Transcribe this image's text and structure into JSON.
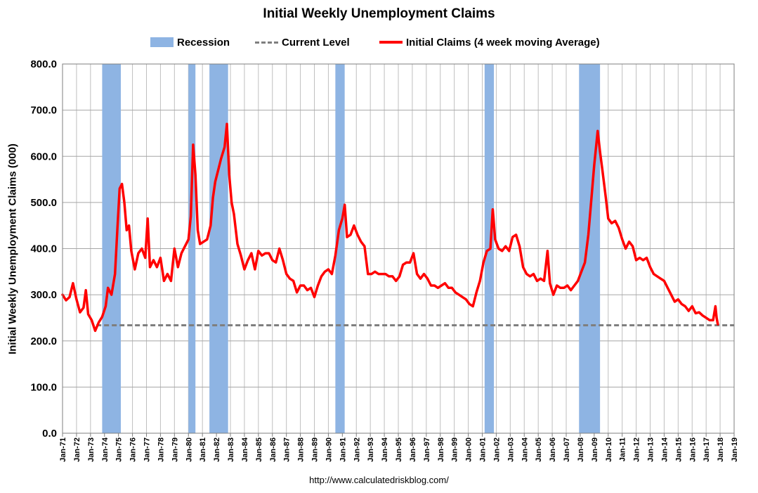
{
  "chart_data": {
    "type": "line",
    "title": "Initial Weekly Unemployment Claims",
    "xlabel": "",
    "ylabel": "Initial Weekly Unemployment Claims (000)",
    "ylim": [
      0,
      800
    ],
    "xlim": [
      "1971-01",
      "2019-01"
    ],
    "grid": true,
    "legend_placement": "top",
    "y_ticks": [
      "0.0",
      "100.0",
      "200.0",
      "300.0",
      "400.0",
      "500.0",
      "600.0",
      "700.0",
      "800.0"
    ],
    "x_ticks": [
      "Jan-71",
      "Jan-72",
      "Jan-73",
      "Jan-74",
      "Jan-75",
      "Jan-76",
      "Jan-77",
      "Jan-78",
      "Jan-79",
      "Jan-80",
      "Jan-81",
      "Jan-82",
      "Jan-83",
      "Jan-84",
      "Jan-85",
      "Jan-86",
      "Jan-87",
      "Jan-88",
      "Jan-89",
      "Jan-90",
      "Jan-91",
      "Jan-92",
      "Jan-93",
      "Jan-94",
      "Jan-95",
      "Jan-96",
      "Jan-97",
      "Jan-98",
      "Jan-99",
      "Jan-00",
      "Jan-01",
      "Jan-02",
      "Jan-03",
      "Jan-04",
      "Jan-05",
      "Jan-06",
      "Jan-07",
      "Jan-08",
      "Jan-09",
      "Jan-10",
      "Jan-11",
      "Jan-12",
      "Jan-13",
      "Jan-14",
      "Jan-15",
      "Jan-16",
      "Jan-17",
      "Jan-18",
      "Jan-19"
    ],
    "legend": {
      "recession": "Recession",
      "current": "Current Level",
      "claims": "Initial Claims (4 week moving Average)"
    },
    "recessions": [
      {
        "start": "1973-11",
        "end": "1975-03"
      },
      {
        "start": "1980-01",
        "end": "1980-07"
      },
      {
        "start": "1981-07",
        "end": "1982-11"
      },
      {
        "start": "1990-07",
        "end": "1991-03"
      },
      {
        "start": "2001-03",
        "end": "2001-11"
      },
      {
        "start": "2007-12",
        "end": "2009-06"
      }
    ],
    "current_level": 234,
    "series": [
      {
        "name": "Initial Claims (4 week moving Average)",
        "color": "#ff0000",
        "points": [
          [
            "1971-01",
            300
          ],
          [
            "1971-04",
            288
          ],
          [
            "1971-07",
            295
          ],
          [
            "1971-10",
            325
          ],
          [
            "1972-01",
            290
          ],
          [
            "1972-04",
            262
          ],
          [
            "1972-07",
            272
          ],
          [
            "1972-09",
            310
          ],
          [
            "1972-11",
            258
          ],
          [
            "1973-02",
            245
          ],
          [
            "1973-05",
            222
          ],
          [
            "1973-08",
            240
          ],
          [
            "1973-11",
            252
          ],
          [
            "1974-02",
            275
          ],
          [
            "1974-04",
            315
          ],
          [
            "1974-07",
            300
          ],
          [
            "1974-10",
            345
          ],
          [
            "1974-12",
            440
          ],
          [
            "1975-02",
            530
          ],
          [
            "1975-04",
            540
          ],
          [
            "1975-06",
            500
          ],
          [
            "1975-08",
            440
          ],
          [
            "1975-10",
            450
          ],
          [
            "1975-12",
            395
          ],
          [
            "1976-03",
            355
          ],
          [
            "1976-06",
            390
          ],
          [
            "1976-09",
            400
          ],
          [
            "1976-12",
            380
          ],
          [
            "1977-02",
            465
          ],
          [
            "1977-04",
            360
          ],
          [
            "1977-07",
            375
          ],
          [
            "1977-10",
            360
          ],
          [
            "1978-01",
            380
          ],
          [
            "1978-04",
            330
          ],
          [
            "1978-07",
            345
          ],
          [
            "1978-10",
            330
          ],
          [
            "1979-01",
            400
          ],
          [
            "1979-04",
            360
          ],
          [
            "1979-07",
            390
          ],
          [
            "1979-10",
            405
          ],
          [
            "1980-01",
            420
          ],
          [
            "1980-03",
            470
          ],
          [
            "1980-05",
            625
          ],
          [
            "1980-07",
            560
          ],
          [
            "1980-09",
            440
          ],
          [
            "1980-11",
            410
          ],
          [
            "1981-02",
            415
          ],
          [
            "1981-05",
            420
          ],
          [
            "1981-08",
            450
          ],
          [
            "1981-10",
            510
          ],
          [
            "1981-12",
            545
          ],
          [
            "1982-03",
            575
          ],
          [
            "1982-05",
            595
          ],
          [
            "1982-08",
            620
          ],
          [
            "1982-10",
            670
          ],
          [
            "1982-12",
            560
          ],
          [
            "1983-02",
            500
          ],
          [
            "1983-04",
            475
          ],
          [
            "1983-07",
            410
          ],
          [
            "1983-10",
            385
          ],
          [
            "1984-01",
            355
          ],
          [
            "1984-04",
            375
          ],
          [
            "1984-07",
            390
          ],
          [
            "1984-10",
            355
          ],
          [
            "1985-01",
            395
          ],
          [
            "1985-04",
            385
          ],
          [
            "1985-07",
            390
          ],
          [
            "1985-10",
            390
          ],
          [
            "1986-01",
            375
          ],
          [
            "1986-04",
            370
          ],
          [
            "1986-07",
            400
          ],
          [
            "1986-10",
            375
          ],
          [
            "1987-01",
            345
          ],
          [
            "1987-04",
            335
          ],
          [
            "1987-07",
            330
          ],
          [
            "1987-10",
            305
          ],
          [
            "1988-01",
            320
          ],
          [
            "1988-04",
            320
          ],
          [
            "1988-07",
            310
          ],
          [
            "1988-10",
            315
          ],
          [
            "1989-01",
            295
          ],
          [
            "1989-04",
            320
          ],
          [
            "1989-07",
            340
          ],
          [
            "1989-10",
            350
          ],
          [
            "1990-01",
            355
          ],
          [
            "1990-04",
            345
          ],
          [
            "1990-07",
            385
          ],
          [
            "1990-10",
            440
          ],
          [
            "1991-01",
            465
          ],
          [
            "1991-03",
            495
          ],
          [
            "1991-05",
            425
          ],
          [
            "1991-08",
            430
          ],
          [
            "1991-11",
            450
          ],
          [
            "1992-02",
            430
          ],
          [
            "1992-05",
            415
          ],
          [
            "1992-08",
            405
          ],
          [
            "1992-11",
            345
          ],
          [
            "1993-02",
            345
          ],
          [
            "1993-05",
            350
          ],
          [
            "1993-08",
            345
          ],
          [
            "1993-11",
            345
          ],
          [
            "1994-02",
            345
          ],
          [
            "1994-05",
            340
          ],
          [
            "1994-08",
            340
          ],
          [
            "1994-11",
            330
          ],
          [
            "1995-02",
            340
          ],
          [
            "1995-05",
            365
          ],
          [
            "1995-08",
            370
          ],
          [
            "1995-11",
            370
          ],
          [
            "1996-02",
            390
          ],
          [
            "1996-05",
            345
          ],
          [
            "1996-08",
            335
          ],
          [
            "1996-11",
            345
          ],
          [
            "1997-02",
            335
          ],
          [
            "1997-05",
            320
          ],
          [
            "1997-08",
            320
          ],
          [
            "1997-11",
            315
          ],
          [
            "1998-02",
            320
          ],
          [
            "1998-05",
            325
          ],
          [
            "1998-08",
            315
          ],
          [
            "1998-11",
            315
          ],
          [
            "1999-02",
            305
          ],
          [
            "1999-05",
            300
          ],
          [
            "1999-08",
            295
          ],
          [
            "1999-11",
            290
          ],
          [
            "2000-02",
            280
          ],
          [
            "2000-05",
            275
          ],
          [
            "2000-08",
            305
          ],
          [
            "2000-11",
            330
          ],
          [
            "2001-02",
            370
          ],
          [
            "2001-05",
            395
          ],
          [
            "2001-08",
            400
          ],
          [
            "2001-10",
            485
          ],
          [
            "2001-12",
            420
          ],
          [
            "2002-03",
            400
          ],
          [
            "2002-06",
            395
          ],
          [
            "2002-09",
            405
          ],
          [
            "2002-12",
            395
          ],
          [
            "2003-03",
            425
          ],
          [
            "2003-06",
            430
          ],
          [
            "2003-09",
            405
          ],
          [
            "2003-12",
            360
          ],
          [
            "2004-03",
            345
          ],
          [
            "2004-06",
            340
          ],
          [
            "2004-09",
            345
          ],
          [
            "2004-12",
            330
          ],
          [
            "2005-03",
            335
          ],
          [
            "2005-06",
            330
          ],
          [
            "2005-09",
            395
          ],
          [
            "2005-11",
            325
          ],
          [
            "2006-02",
            300
          ],
          [
            "2006-05",
            320
          ],
          [
            "2006-08",
            315
          ],
          [
            "2006-11",
            315
          ],
          [
            "2007-02",
            320
          ],
          [
            "2007-05",
            310
          ],
          [
            "2007-08",
            320
          ],
          [
            "2007-11",
            330
          ],
          [
            "2008-02",
            350
          ],
          [
            "2008-05",
            370
          ],
          [
            "2008-08",
            430
          ],
          [
            "2008-11",
            520
          ],
          [
            "2009-01",
            580
          ],
          [
            "2009-04",
            655
          ],
          [
            "2009-06",
            610
          ],
          [
            "2009-08",
            570
          ],
          [
            "2009-11",
            510
          ],
          [
            "2010-01",
            465
          ],
          [
            "2010-04",
            455
          ],
          [
            "2010-07",
            460
          ],
          [
            "2010-10",
            445
          ],
          [
            "2011-01",
            420
          ],
          [
            "2011-04",
            400
          ],
          [
            "2011-07",
            415
          ],
          [
            "2011-10",
            405
          ],
          [
            "2012-01",
            375
          ],
          [
            "2012-04",
            380
          ],
          [
            "2012-07",
            375
          ],
          [
            "2012-10",
            380
          ],
          [
            "2013-01",
            360
          ],
          [
            "2013-04",
            345
          ],
          [
            "2013-07",
            340
          ],
          [
            "2013-10",
            335
          ],
          [
            "2014-01",
            330
          ],
          [
            "2014-04",
            315
          ],
          [
            "2014-07",
            300
          ],
          [
            "2014-10",
            285
          ],
          [
            "2015-01",
            290
          ],
          [
            "2015-04",
            280
          ],
          [
            "2015-07",
            275
          ],
          [
            "2015-10",
            265
          ],
          [
            "2016-01",
            275
          ],
          [
            "2016-04",
            260
          ],
          [
            "2016-07",
            262
          ],
          [
            "2016-10",
            255
          ],
          [
            "2017-01",
            250
          ],
          [
            "2017-04",
            245
          ],
          [
            "2017-07",
            245
          ],
          [
            "2017-09",
            275
          ],
          [
            "2017-10",
            250
          ],
          [
            "2017-11",
            236
          ]
        ]
      }
    ]
  },
  "footer": {
    "source": "http://www.calculatedriskblog.com/"
  }
}
